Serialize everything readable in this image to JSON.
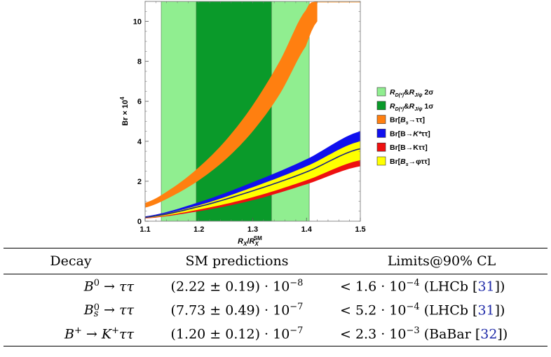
{
  "chart_data": {
    "type": "area",
    "xlabel": "R_X/R_X^SM",
    "ylabel": "Br × 10^4",
    "xlim": [
      1.1,
      1.5
    ],
    "ylim": [
      0,
      11
    ],
    "x_ticks": [
      "1.1",
      "1.2",
      "1.3",
      "1.4",
      "1.5"
    ],
    "y_ticks": [
      "0",
      "2",
      "4",
      "6",
      "8",
      "10"
    ],
    "legend_position": "right",
    "bands": [
      {
        "name": "R_D(*) & R_J/ψ 2σ",
        "x_range": [
          1.13,
          1.405
        ],
        "color": "#90ee90"
      },
      {
        "name": "R_D(*) & R_J/ψ 1σ",
        "x_range": [
          1.195,
          1.335
        ],
        "color": "#0a9a2a"
      }
    ],
    "series": [
      {
        "name": "Br[B_s→ττ]",
        "color": "#ff7f10",
        "x": [
          1.1,
          1.15,
          1.2,
          1.25,
          1.3,
          1.35,
          1.4,
          1.42
        ],
        "lower": [
          0.68,
          1.25,
          2.05,
          3.1,
          4.5,
          6.35,
          8.8,
          10.0
        ],
        "upper": [
          0.92,
          1.65,
          2.7,
          4.05,
          5.8,
          8.0,
          10.6,
          11.0
        ]
      },
      {
        "name": "Br[B→K*ττ]",
        "color": "#1010ee",
        "x": [
          1.1,
          1.2,
          1.3,
          1.4,
          1.5
        ],
        "lower": [
          0.18,
          0.62,
          1.32,
          2.2,
          3.3
        ],
        "upper": [
          0.24,
          0.95,
          1.95,
          3.1,
          4.5
        ]
      },
      {
        "name": "Br[B→Kττ]",
        "color": "#ee1010",
        "x": [
          1.1,
          1.2,
          1.3,
          1.4,
          1.5
        ],
        "lower": [
          0.14,
          0.5,
          1.05,
          1.85,
          2.75
        ],
        "upper": [
          0.18,
          0.6,
          1.22,
          2.08,
          3.1
        ]
      },
      {
        "name": "Br[B_s→φττ]",
        "color": "#ffff00",
        "x": [
          1.1,
          1.2,
          1.3,
          1.4,
          1.5
        ],
        "lower": [
          0.16,
          0.58,
          1.2,
          2.05,
          3.05
        ],
        "upper": [
          0.22,
          0.8,
          1.7,
          2.75,
          4.0
        ]
      }
    ],
    "legend": [
      {
        "main": "R",
        "sub": "D(*)",
        "mid": "&",
        "main2": "R",
        "sub2": "J/ψ",
        "tail": " 2σ",
        "color": "#90ee90"
      },
      {
        "main": "R",
        "sub": "D(*)",
        "mid": "&",
        "main2": "R",
        "sub2": "J/ψ",
        "tail": " 1σ",
        "color": "#0a9a2a"
      },
      {
        "pre": "Br[",
        "ital": "B",
        "sub": "s",
        "post": "→ττ]",
        "color": "#ff7f10"
      },
      {
        "pre": "Br[B→",
        "ital": "K*",
        "post": "ττ]",
        "color": "#1010ee"
      },
      {
        "pre": "Br[B→Kττ]",
        "color": "#ee1010"
      },
      {
        "pre": "Br[",
        "ital": "B",
        "sub": "s",
        "post": "→φττ]",
        "color": "#ffff00"
      }
    ]
  },
  "table": {
    "headers": [
      "Decay",
      "SM predictions",
      "Limits@90% CL"
    ],
    "rows": [
      {
        "decay": {
          "pre": "B",
          "sup": "0",
          "sub": "",
          "post": " → ττ"
        },
        "sm": {
          "mant": "(2.22 ± 0.19) · 10",
          "exp": "−8"
        },
        "limit": {
          "pre": "< 1.6 · 10",
          "exp": "−4",
          "exp_name": "LHCb",
          "ref": "31"
        }
      },
      {
        "decay": {
          "pre": "B",
          "sup": "0",
          "sub": "s",
          "post": " → ττ"
        },
        "sm": {
          "mant": "(7.73 ± 0.49) · 10",
          "exp": "−7"
        },
        "limit": {
          "pre": "< 5.2 · 10",
          "exp": "−4",
          "exp_name": "LHCb",
          "ref": "31"
        }
      },
      {
        "decay": {
          "pre": "B",
          "sup": "+",
          "sub": "",
          "post": " → K",
          "sup2": "+",
          "post2": "ττ"
        },
        "sm": {
          "mant": "(1.20 ± 0.12) · 10",
          "exp": "−7"
        },
        "limit": {
          "pre": "< 2.3 · 10",
          "exp": "−3",
          "exp_name": "BaBar",
          "ref": "32"
        }
      }
    ]
  }
}
